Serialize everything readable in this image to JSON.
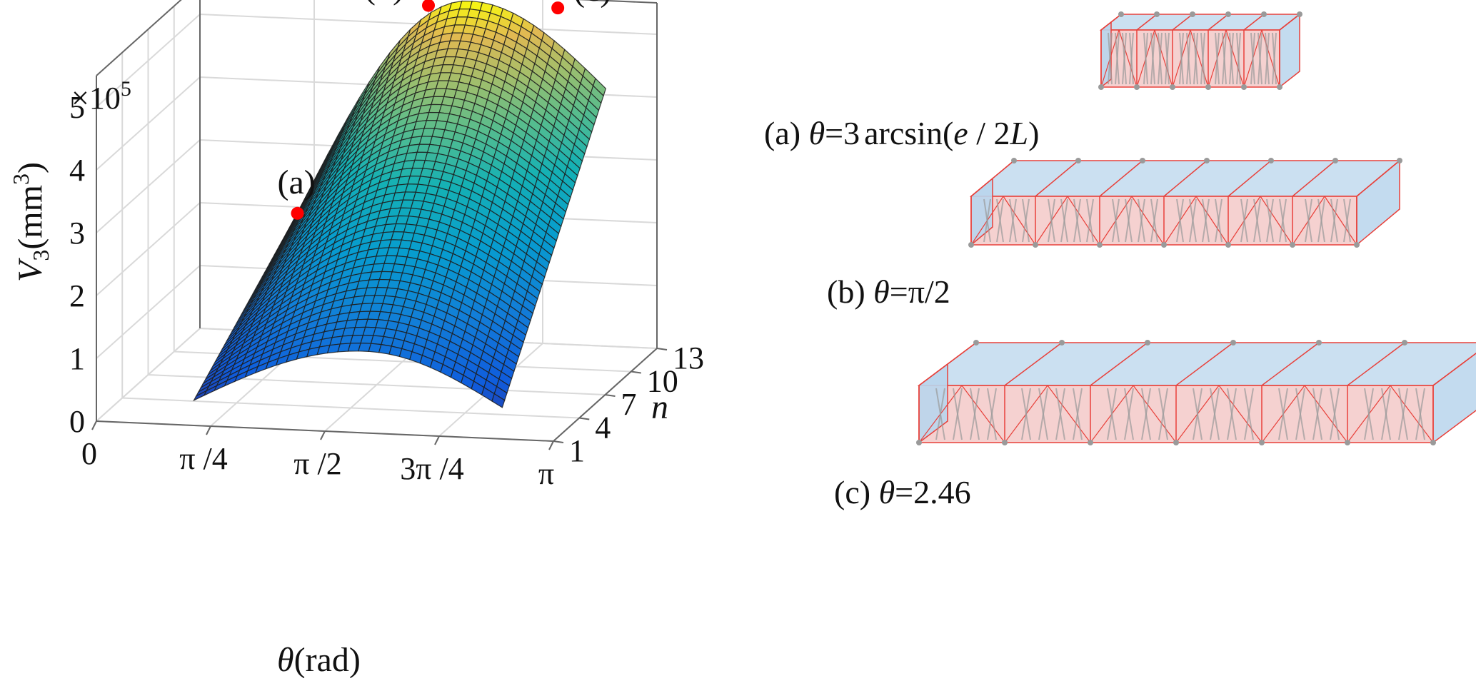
{
  "chart_data": {
    "type": "surface3d",
    "title": "",
    "zlabel_main": "V",
    "zlabel_sub": "3",
    "zlabel_unit": "(mm",
    "zlabel_sup": "3",
    "zlabel_close": ")",
    "z_exponent_prefix": "×10",
    "z_exponent_power": "5",
    "xlabel_symbol": "θ",
    "xlabel_unit": "(rad)",
    "ylabel": "n",
    "x_ticks": [
      "0",
      "π /4",
      "π /2",
      "3π /4",
      "π"
    ],
    "y_ticks": [
      "1",
      "4",
      "7",
      "10",
      "13"
    ],
    "z_ticks": [
      "0",
      "1",
      "2",
      "3",
      "4",
      "5"
    ],
    "xlim": [
      0,
      3.1416
    ],
    "ylim": [
      1,
      13
    ],
    "zlim": [
      0,
      5.5
    ],
    "surface": {
      "theta_range": [
        0.67,
        2.79
      ],
      "n_range": [
        1,
        13
      ],
      "peak_theta": 1.85,
      "peak_value_at_n13": 5.4,
      "edge_value_theta_min_n13": 1.9,
      "edge_value_theta_max_n13": 4.1,
      "edge_value_theta_min_n1": 0.4,
      "peak_value_at_n1": 1.3,
      "edge_value_theta_max_n1": 0.5
    },
    "points": [
      {
        "label": "(a)",
        "theta": 0.67,
        "n": 13,
        "value": 1.9
      },
      {
        "label": "(b)",
        "theta": 1.5708,
        "n": 13,
        "value": 5.3
      },
      {
        "label": "(c)",
        "theta": 2.46,
        "n": 13,
        "value": 5.35
      }
    ]
  },
  "panels": [
    {
      "tag": "(a)",
      "formula": "θ=3 arcsin(e / 2L)",
      "prefix": "(a) ",
      "symbol": "θ",
      "eq": "=3",
      "fn": "arcsin(",
      "e": "e",
      "slash": " / 2",
      "L": "L",
      "close": ")"
    },
    {
      "tag": "(b)",
      "prefix": "(b) ",
      "symbol": "θ",
      "eq": "=π/2"
    },
    {
      "tag": "(c)",
      "prefix": "(c) ",
      "symbol": "θ",
      "eq": "=2.46"
    }
  ],
  "colors": {
    "point": "#ff0000",
    "frame_red": "#e8403a",
    "frame_fill_blue": "#b9d5ec",
    "frame_fill_pink": "#f3c6c4",
    "lattice": "#9a9a9a"
  }
}
